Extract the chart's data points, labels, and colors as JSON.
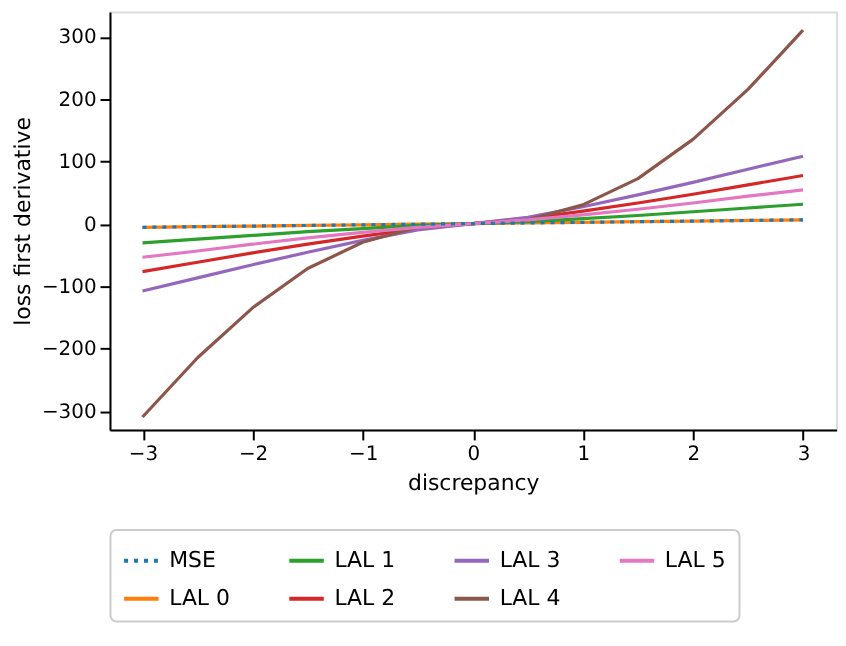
{
  "chart_data": {
    "type": "line",
    "xlabel": "discrepancy",
    "ylabel": "loss first derivative",
    "x": [
      -3,
      -2.5,
      -2,
      -1.5,
      -1,
      -0.5,
      0,
      0.5,
      1,
      1.5,
      2,
      2.5,
      3
    ],
    "xlim": [
      -3.3,
      3.3
    ],
    "ylim": [
      -330,
      340
    ],
    "xticks": [
      {
        "value": -3,
        "label": "−3"
      },
      {
        "value": -2,
        "label": "−2"
      },
      {
        "value": -1,
        "label": "−1"
      },
      0,
      1,
      2,
      3
    ],
    "yticks": [
      {
        "value": -300,
        "label": "−300"
      },
      {
        "value": -200,
        "label": "−200"
      },
      {
        "value": -100,
        "label": "−100"
      },
      0,
      100,
      200,
      300
    ],
    "grid": false,
    "legend": "bottom",
    "series": [
      {
        "name": "MSE",
        "color": "#1f77b4",
        "line_style": "dotted",
        "values": [
          -6,
          -5,
          -4,
          -3,
          -2,
          -1,
          0,
          1,
          2,
          3,
          4,
          5,
          6
        ]
      },
      {
        "name": "LAL 0",
        "color": "#ff7f0e",
        "values": [
          -6,
          -5,
          -4,
          -3,
          -2,
          -1,
          0,
          1,
          2,
          3,
          4,
          5,
          6
        ]
      },
      {
        "name": "LAL 1",
        "color": "#2ca02c",
        "values": [
          -31,
          -25,
          -19,
          -13,
          -8,
          -3,
          0,
          3,
          8,
          13,
          19,
          25,
          31
        ]
      },
      {
        "name": "LAL 2",
        "color": "#d62728",
        "values": [
          -77,
          -62,
          -47,
          -33,
          -20,
          -8,
          0,
          8,
          20,
          33,
          47,
          62,
          77
        ]
      },
      {
        "name": "LAL 3",
        "color": "#9467bd",
        "values": [
          -108,
          -87,
          -66,
          -46,
          -27,
          -10,
          0,
          10,
          27,
          46,
          66,
          87,
          108
        ]
      },
      {
        "name": "LAL 4",
        "color": "#8c564b",
        "values": [
          -310,
          -215,
          -135,
          -72,
          -30,
          -6,
          0,
          6,
          30,
          72,
          135,
          215,
          310
        ]
      },
      {
        "name": "LAL 5",
        "color": "#e377c2",
        "values": [
          -54,
          -44,
          -33,
          -23,
          -14,
          -6,
          0,
          6,
          14,
          23,
          33,
          44,
          54
        ]
      }
    ]
  }
}
